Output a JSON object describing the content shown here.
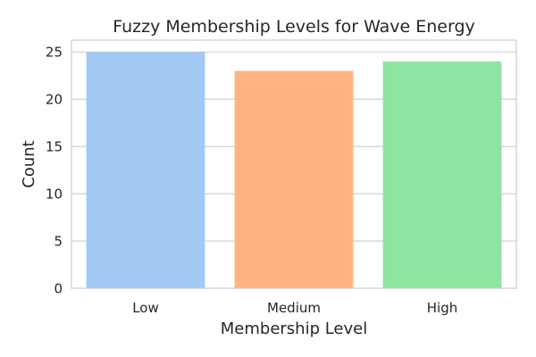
{
  "chart_data": {
    "type": "bar",
    "title": "Fuzzy Membership Levels for Wave Energy",
    "xlabel": "Membership Level",
    "ylabel": "Count",
    "categories": [
      "Low",
      "Medium",
      "High"
    ],
    "values": [
      25,
      23,
      24
    ],
    "colors": [
      "#a1c9f4",
      "#ffb482",
      "#8de5a1"
    ],
    "ylim": [
      0,
      26.25
    ],
    "yticks": [
      0,
      5,
      10,
      15,
      20,
      25
    ],
    "grid": "horizontal",
    "legend": "none"
  }
}
